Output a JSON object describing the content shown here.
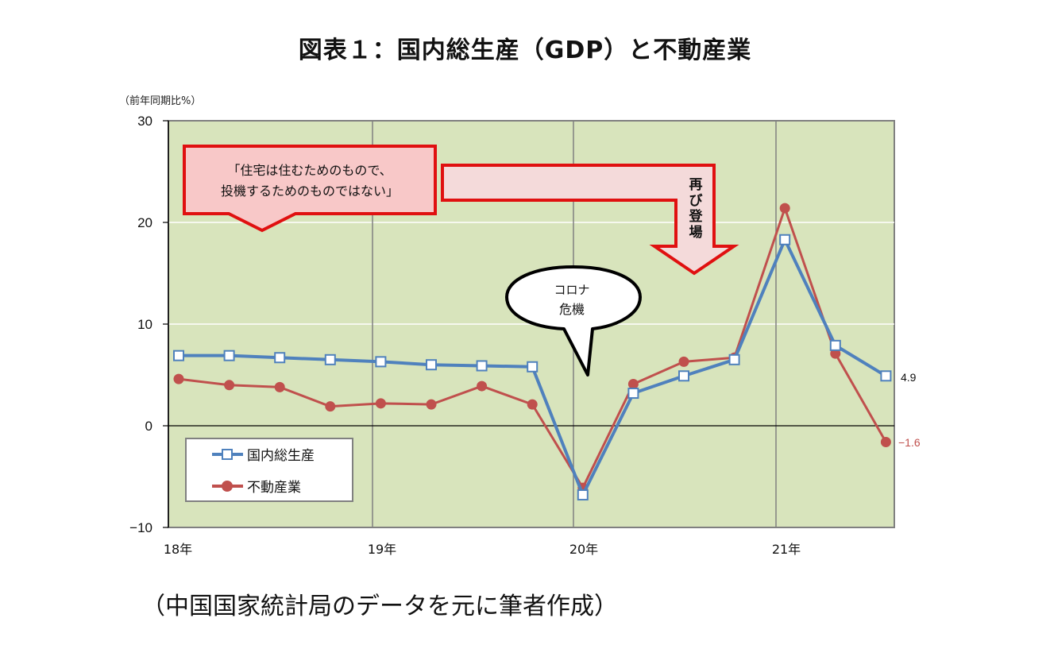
{
  "title": "図表１：国内総生産（GDP）と不動産業",
  "y_unit_label": "（前年同期比%）",
  "source_note": "（中国国家統計局のデータを元に筆者作成）",
  "annotations": {
    "quote_line1": "「住宅は住むためのもので、",
    "quote_line2": "投機するためのものではない」",
    "arrow_text": [
      "再",
      "び",
      "登",
      "場"
    ],
    "bubble_line1": "コロナ",
    "bubble_line2": "危機",
    "label_gdp_last": "4.9",
    "label_re_last": "−1.6"
  },
  "legend": [
    {
      "name": "国内総生産",
      "color": "#4f81bd",
      "marker": "square"
    },
    {
      "name": "不動産業",
      "color": "#c0504d",
      "marker": "circle"
    }
  ],
  "colors": {
    "plot_bg": "#d8e4bc",
    "gdp": "#4f81bd",
    "real_estate": "#c0504d",
    "callout_border": "#e01010",
    "callout_fill": "#f8c8c8",
    "negative_tick": "#c00000"
  },
  "chart_data": {
    "type": "line",
    "title": "図表１：国内総生産（GDP）と不動産業",
    "xlabel": "",
    "ylabel": "（前年同期比%）",
    "ylim": [
      -10,
      30
    ],
    "yticks": [
      30,
      20,
      10,
      0,
      -10
    ],
    "x_tick_labels": [
      "18年",
      "19年",
      "20年",
      "21年"
    ],
    "x": [
      "18Q1",
      "18Q2",
      "18Q3",
      "18Q4",
      "19Q1",
      "19Q2",
      "19Q3",
      "19Q4",
      "20Q1",
      "20Q2",
      "20Q3",
      "20Q4",
      "21Q1",
      "21Q2",
      "21Q3"
    ],
    "series": [
      {
        "name": "国内総生産",
        "values": [
          6.9,
          6.9,
          6.7,
          6.5,
          6.3,
          6.0,
          5.9,
          5.8,
          -6.8,
          3.2,
          4.9,
          6.5,
          18.3,
          7.9,
          4.9
        ]
      },
      {
        "name": "不動産業",
        "values": [
          4.6,
          4.0,
          3.8,
          1.9,
          2.2,
          2.1,
          3.9,
          2.1,
          -6.1,
          4.1,
          6.3,
          6.7,
          21.4,
          7.1,
          -1.6
        ]
      }
    ],
    "grid": true,
    "legend_position": "lower-left inside"
  }
}
